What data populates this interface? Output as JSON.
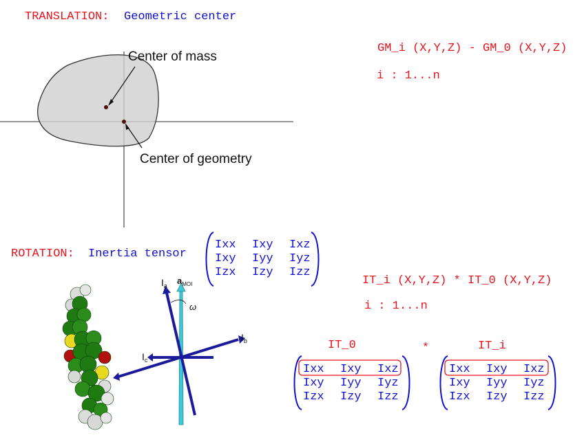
{
  "translation": {
    "label": "TRANSLATION:",
    "name": "Geometric center",
    "formula": "GM_i (X,Y,Z) - GM_0 (X,Y,Z)",
    "index": "i : 1...n",
    "diagram": {
      "center_of_mass": "Center of mass",
      "center_of_geometry": "Center of geometry"
    }
  },
  "rotation": {
    "label": "ROTATION:",
    "name": "Inertia tensor",
    "formula": "IT_i (X,Y,Z) * IT_0 (X,Y,Z)",
    "index": "i : 1...n",
    "matrix": [
      [
        "Ixx",
        "Ixy",
        "Ixz"
      ],
      [
        "Ixy",
        "Iyy",
        "Iyz"
      ],
      [
        "Izx",
        "Izy",
        "Izz"
      ]
    ],
    "it0_label": "IT_0",
    "iti_label": "IT_i",
    "star": "*",
    "axes": {
      "Ia_main": "I",
      "Ia_sub": "a",
      "Ib_main": "I",
      "Ib_sub": "b",
      "Ic_main": "I",
      "Ic_sub": "c",
      "amoi_main": "a",
      "amoi_sub": "MOI",
      "omega": "ω"
    }
  },
  "colors": {
    "red": "#e8131b",
    "blue": "#1010d0",
    "shape_fill": "#cfcfcf",
    "axis_blue": "#1a1a9a",
    "axis_cyan": "#40c8d8",
    "molecule_green": "#1f7a12"
  }
}
